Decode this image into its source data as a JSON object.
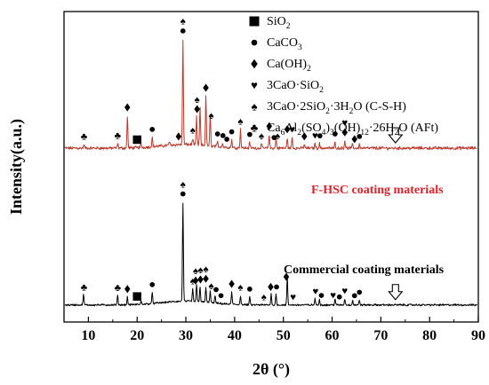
{
  "chart_data": {
    "type": "line",
    "title": "",
    "xlabel": "2θ (°)",
    "ylabel": "Intensity(a.u.)",
    "xlim": [
      5,
      90
    ],
    "xticks": [
      10,
      20,
      30,
      40,
      50,
      60,
      70,
      80,
      90
    ],
    "ylim": [
      0,
      1
    ],
    "yticks_shown": false,
    "grid": false,
    "series": [
      {
        "name": "F-HSC coating materials",
        "color": "#c0392b",
        "label_color": "#e8202a",
        "baseline": 0.56,
        "noise": 0.004,
        "peaks": [
          [
            9.1,
            0.012
          ],
          [
            16.0,
            0.015
          ],
          [
            18.0,
            0.105
          ],
          [
            20.8,
            0.012
          ],
          [
            23.1,
            0.03
          ],
          [
            26.6,
            0.012
          ],
          [
            29.4,
            0.34
          ],
          [
            31.4,
            0.02
          ],
          [
            32.2,
            0.09
          ],
          [
            32.9,
            0.12
          ],
          [
            34.1,
            0.16
          ],
          [
            35.0,
            0.1
          ],
          [
            36.5,
            0.015
          ],
          [
            37.5,
            0.012
          ],
          [
            39.4,
            0.025
          ],
          [
            41.2,
            0.06
          ],
          [
            43.1,
            0.018
          ],
          [
            45.5,
            0.014
          ],
          [
            47.1,
            0.045
          ],
          [
            48.5,
            0.03
          ],
          [
            50.8,
            0.035
          ],
          [
            51.8,
            0.035
          ],
          [
            54.3,
            0.012
          ],
          [
            56.5,
            0.015
          ],
          [
            57.4,
            0.015
          ],
          [
            60.6,
            0.02
          ],
          [
            62.6,
            0.025
          ],
          [
            64.2,
            0.012
          ],
          [
            65.6,
            0.012
          ]
        ],
        "arrow_x": 73
      },
      {
        "name": "Commercial coating materials",
        "color": "#000000",
        "label_color": "#000000",
        "baseline": 0.055,
        "noise": 0.0025,
        "peaks": [
          [
            9.0,
            0.035
          ],
          [
            16.0,
            0.03
          ],
          [
            18.0,
            0.025
          ],
          [
            20.8,
            0.01
          ],
          [
            23.1,
            0.035
          ],
          [
            29.4,
            0.32
          ],
          [
            31.4,
            0.04
          ],
          [
            32.2,
            0.055
          ],
          [
            32.9,
            0.05
          ],
          [
            34.1,
            0.05
          ],
          [
            35.0,
            0.04
          ],
          [
            36.0,
            0.025
          ],
          [
            39.4,
            0.04
          ],
          [
            41.2,
            0.03
          ],
          [
            43.1,
            0.025
          ],
          [
            47.5,
            0.035
          ],
          [
            48.5,
            0.035
          ],
          [
            50.8,
            0.09
          ],
          [
            56.5,
            0.02
          ],
          [
            57.4,
            0.018
          ],
          [
            60.6,
            0.02
          ],
          [
            62.6,
            0.02
          ],
          [
            64.2,
            0.015
          ],
          [
            65.6,
            0.015
          ]
        ],
        "arrow_x": 73
      }
    ],
    "legend": {
      "placement": "top-right",
      "entries": [
        {
          "symbol": "square",
          "text": "SiO",
          "sub": "2",
          "tail": ""
        },
        {
          "symbol": "circle",
          "text": "CaCO",
          "sub": "3",
          "tail": ""
        },
        {
          "symbol": "diamond",
          "text": "Ca(OH)",
          "sub": "2",
          "tail": ""
        },
        {
          "symbol": "heart",
          "text": "3CaO·SiO",
          "sub": "2",
          "tail": ""
        },
        {
          "symbol": "spade",
          "text": "3CaO·2SiO",
          "sub": "2",
          "tail": "·3H",
          "sub2": "2",
          "tail2": "O (C-S-H)"
        },
        {
          "symbol": "club",
          "text": "Ca",
          "sub": "6",
          "tail": "Al",
          "sub2": "2",
          "tail2": "(SO",
          "sub3": "4",
          "tail3": ")",
          "sub4": "3",
          "tail4": "(OH)",
          "sub5": "12",
          "tail5": "·26H",
          "sub6": "2",
          "tail6": "O (AFt)"
        }
      ]
    },
    "phase_markers": {
      "top": [
        {
          "x": 9.1,
          "symbols": [
            "club"
          ]
        },
        {
          "x": 16.0,
          "symbols": [
            "club"
          ]
        },
        {
          "x": 18.0,
          "symbols": [
            "diamond"
          ]
        },
        {
          "x": 20.0,
          "symbols": [
            "square"
          ]
        },
        {
          "x": 23.1,
          "symbols": [
            "circle"
          ]
        },
        {
          "x": 28.5,
          "symbols": [
            "diamond"
          ]
        },
        {
          "x": 29.4,
          "symbols": [
            "spade",
            "circle"
          ]
        },
        {
          "x": 31.4,
          "symbols": [
            "spade"
          ]
        },
        {
          "x": 32.3,
          "symbols": [
            "spade",
            "diamond"
          ]
        },
        {
          "x": 34.1,
          "symbols": [
            "diamond"
          ]
        },
        {
          "x": 35.2,
          "symbols": [
            "spade"
          ]
        },
        {
          "x": 36.5,
          "symbols": [
            "circle"
          ]
        },
        {
          "x": 37.6,
          "symbols": [
            "circle"
          ]
        },
        {
          "x": 38.4,
          "symbols": [
            "circle"
          ]
        },
        {
          "x": 39.4,
          "symbols": [
            "circle"
          ]
        },
        {
          "x": 41.2,
          "symbols": [
            "spade"
          ]
        },
        {
          "x": 43.1,
          "symbols": [
            "circle"
          ]
        },
        {
          "x": 45.5,
          "symbols": [
            "spade"
          ]
        },
        {
          "x": 47.1,
          "symbols": [
            "diamond"
          ]
        },
        {
          "x": 48.1,
          "symbols": [
            "circle"
          ]
        },
        {
          "x": 48.8,
          "symbols": [
            "spade"
          ]
        },
        {
          "x": 50.8,
          "symbols": [
            "diamond"
          ]
        },
        {
          "x": 51.8,
          "symbols": [
            "heart"
          ]
        },
        {
          "x": 54.3,
          "symbols": [
            "diamond"
          ]
        },
        {
          "x": 56.5,
          "symbols": [
            "heart"
          ]
        },
        {
          "x": 57.5,
          "symbols": [
            "circle"
          ]
        },
        {
          "x": 60.6,
          "symbols": [
            "circle"
          ]
        },
        {
          "x": 62.6,
          "symbols": [
            "heart",
            "diamond"
          ]
        },
        {
          "x": 64.6,
          "symbols": [
            "diamond"
          ]
        },
        {
          "x": 65.6,
          "symbols": [
            "circle"
          ]
        }
      ],
      "bottom": [
        {
          "x": 9.1,
          "symbols": [
            "club"
          ]
        },
        {
          "x": 16.0,
          "symbols": [
            "club"
          ]
        },
        {
          "x": 18.0,
          "symbols": [
            "diamond"
          ]
        },
        {
          "x": 20.0,
          "symbols": [
            "square"
          ]
        },
        {
          "x": 23.1,
          "symbols": [
            "circle"
          ]
        },
        {
          "x": 29.4,
          "symbols": [
            "spade",
            "circle"
          ]
        },
        {
          "x": 31.4,
          "symbols": [
            "spade"
          ]
        },
        {
          "x": 32.0,
          "symbols": [
            "spade",
            "diamond"
          ]
        },
        {
          "x": 33.0,
          "symbols": [
            "spade",
            "diamond"
          ]
        },
        {
          "x": 34.1,
          "symbols": [
            "spade",
            "diamond"
          ]
        },
        {
          "x": 35.2,
          "symbols": [
            "spade"
          ]
        },
        {
          "x": 36.2,
          "symbols": [
            "circle"
          ]
        },
        {
          "x": 37.2,
          "symbols": [
            "circle"
          ]
        },
        {
          "x": 39.4,
          "symbols": [
            "diamond"
          ]
        },
        {
          "x": 41.2,
          "symbols": [
            "spade"
          ]
        },
        {
          "x": 43.1,
          "symbols": [
            "circle"
          ]
        },
        {
          "x": 46.0,
          "symbols": [
            "spade"
          ]
        },
        {
          "x": 47.4,
          "symbols": [
            "diamond"
          ]
        },
        {
          "x": 48.6,
          "symbols": [
            "circle"
          ]
        },
        {
          "x": 50.6,
          "symbols": [
            "diamond"
          ]
        },
        {
          "x": 52.0,
          "symbols": [
            "heart"
          ]
        },
        {
          "x": 56.6,
          "symbols": [
            "heart"
          ]
        },
        {
          "x": 57.8,
          "symbols": [
            "circle"
          ]
        },
        {
          "x": 60.2,
          "symbols": [
            "heart"
          ]
        },
        {
          "x": 61.5,
          "symbols": [
            "circle"
          ]
        },
        {
          "x": 62.6,
          "symbols": [
            "heart"
          ]
        },
        {
          "x": 64.6,
          "symbols": [
            "circle"
          ]
        },
        {
          "x": 65.6,
          "symbols": [
            "circle"
          ]
        }
      ]
    }
  }
}
